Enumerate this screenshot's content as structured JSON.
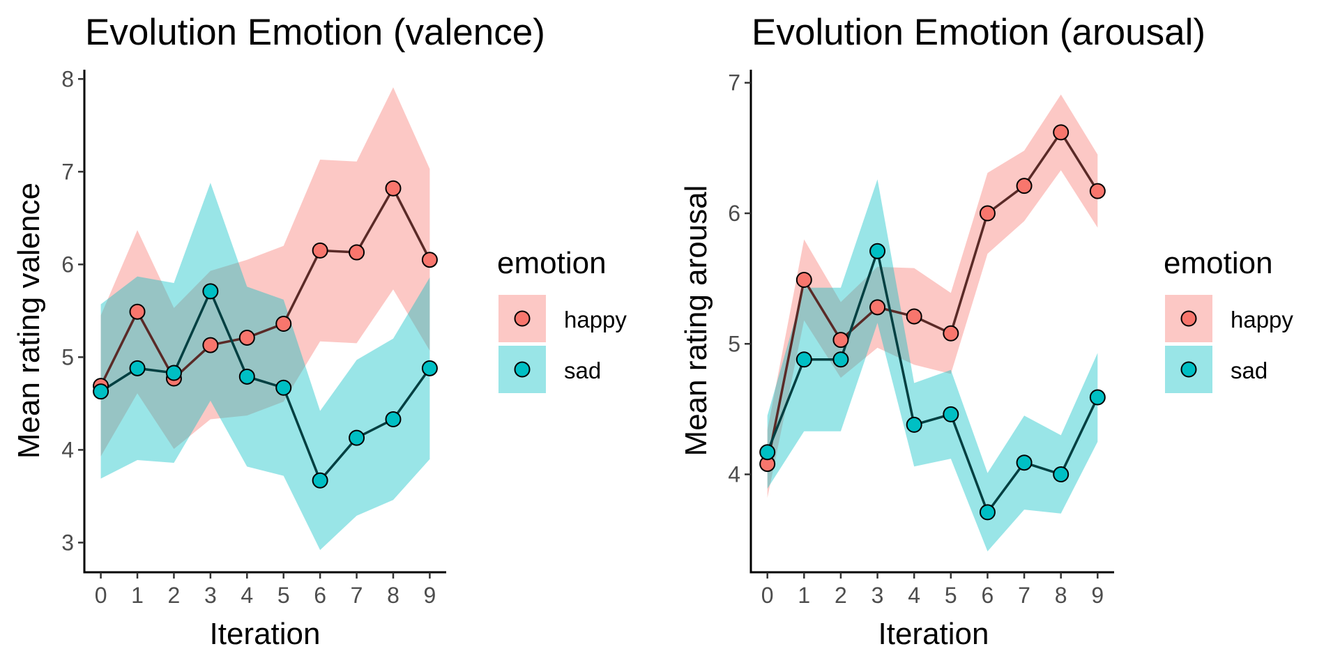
{
  "colors": {
    "happy": "#F8766D",
    "sad": "#00BFC4"
  },
  "chart_data": [
    {
      "type": "line",
      "title": "Evolution Emotion (valence)",
      "xlabel": "Iteration",
      "ylabel": "Mean rating valence",
      "x": [
        0,
        1,
        2,
        3,
        4,
        5,
        6,
        7,
        8,
        9
      ],
      "x_ticks": [
        "0",
        "1",
        "2",
        "3",
        "4",
        "5",
        "6",
        "7",
        "8",
        "9"
      ],
      "y_ticks": [
        "3",
        "4",
        "5",
        "6",
        "7",
        "8"
      ],
      "xlim": [
        -0.45,
        9.45
      ],
      "ylim": [
        2.68,
        8.1
      ],
      "grid": false,
      "legend": {
        "title": "emotion",
        "placement": "right"
      },
      "series": [
        {
          "name": "happy",
          "values": [
            4.69,
            5.49,
            4.77,
            5.13,
            5.21,
            5.36,
            6.15,
            6.13,
            6.82,
            6.05
          ],
          "lower": [
            3.93,
            4.61,
            4.01,
            4.33,
            4.37,
            4.52,
            5.17,
            5.15,
            5.73,
            5.07
          ],
          "upper": [
            5.45,
            6.37,
            5.53,
            5.93,
            6.05,
            6.2,
            7.13,
            7.11,
            7.91,
            7.03
          ]
        },
        {
          "name": "sad",
          "values": [
            4.63,
            4.88,
            4.83,
            5.71,
            4.79,
            4.67,
            3.67,
            4.13,
            4.33,
            4.88
          ],
          "lower": [
            3.69,
            3.89,
            3.86,
            4.53,
            3.82,
            3.72,
            2.92,
            3.29,
            3.46,
            3.9
          ],
          "upper": [
            5.57,
            5.87,
            5.8,
            6.88,
            5.76,
            5.62,
            4.42,
            4.97,
            5.2,
            5.86
          ]
        }
      ]
    },
    {
      "type": "line",
      "title": "Evolution Emotion (arousal)",
      "xlabel": "Iteration",
      "ylabel": "Mean rating arousal",
      "x": [
        0,
        1,
        2,
        3,
        4,
        5,
        6,
        7,
        8,
        9
      ],
      "x_ticks": [
        "0",
        "1",
        "2",
        "3",
        "4",
        "5",
        "6",
        "7",
        "8",
        "9"
      ],
      "y_ticks": [
        "4",
        "5",
        "6",
        "7"
      ],
      "xlim": [
        -0.45,
        9.45
      ],
      "ylim": [
        3.25,
        7.1
      ],
      "grid": false,
      "legend": {
        "title": "emotion",
        "placement": "right"
      },
      "series": [
        {
          "name": "happy",
          "values": [
            4.08,
            5.49,
            5.03,
            5.28,
            5.21,
            5.08,
            6.0,
            6.21,
            6.62,
            6.17
          ],
          "lower": [
            3.82,
            5.18,
            4.74,
            4.97,
            4.84,
            4.77,
            5.69,
            5.94,
            6.33,
            5.89
          ],
          "upper": [
            4.34,
            5.8,
            5.32,
            5.59,
            5.58,
            5.39,
            6.31,
            6.48,
            6.91,
            6.45
          ]
        },
        {
          "name": "sad",
          "values": [
            4.17,
            4.88,
            4.88,
            5.71,
            4.38,
            4.46,
            3.71,
            4.09,
            4.0,
            4.59
          ],
          "lower": [
            3.89,
            4.33,
            4.33,
            5.16,
            4.06,
            4.12,
            3.41,
            3.73,
            3.7,
            4.25
          ],
          "upper": [
            4.45,
            5.43,
            5.43,
            6.26,
            4.7,
            4.8,
            4.01,
            4.45,
            4.3,
            4.93
          ]
        }
      ]
    }
  ]
}
